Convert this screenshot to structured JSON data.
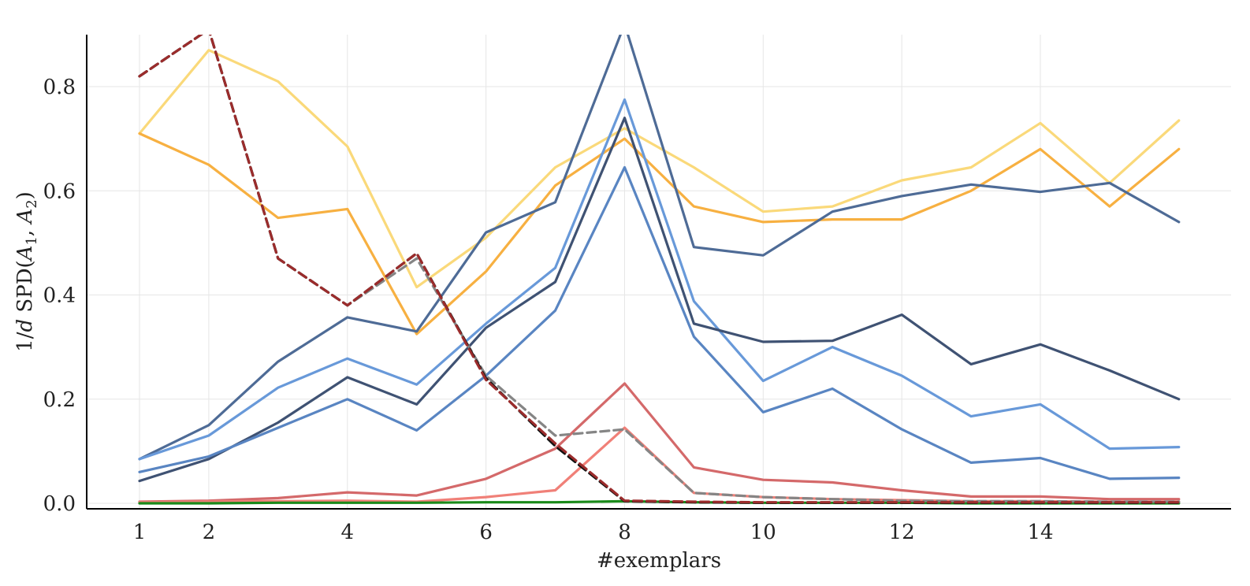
{
  "chart_data": {
    "type": "line",
    "xlabel": "#exemplars",
    "ylabel": "1/d SPD(A1, A2)",
    "ylabel_parts": {
      "prefix": "1/",
      "d": "d",
      "spd": " SPD(",
      "a": "A",
      "sub1": "1",
      "comma": ", ",
      "sub2": "2",
      "close": ")"
    },
    "xlim": [
      0.5,
      16.8
    ],
    "ylim": [
      -0.005,
      0.9
    ],
    "xticks": [
      1,
      2,
      4,
      6,
      8,
      10,
      12,
      14
    ],
    "yticks": [
      0.0,
      0.2,
      0.4,
      0.6,
      0.8
    ],
    "ytick_labels": [
      "0.0",
      "0.2",
      "0.4",
      "0.6",
      "0.8"
    ],
    "grid": true,
    "x": [
      1,
      2,
      3,
      4,
      5,
      6,
      7,
      8,
      9,
      10,
      11,
      12,
      13,
      14,
      15,
      16
    ],
    "series": [
      {
        "color": "#fad97a",
        "style": "solid",
        "values": [
          0.71,
          0.87,
          0.81,
          0.685,
          0.415,
          0.51,
          0.645,
          0.72,
          0.645,
          0.56,
          0.57,
          0.62,
          0.645,
          0.73,
          0.615,
          0.735
        ]
      },
      {
        "color": "#f7b041",
        "style": "solid",
        "values": [
          0.71,
          0.65,
          0.548,
          0.565,
          0.325,
          0.445,
          0.61,
          0.7,
          0.57,
          0.54,
          0.545,
          0.545,
          0.6,
          0.68,
          0.57,
          0.68
        ]
      },
      {
        "color": "#4e6b96",
        "style": "solid",
        "values": [
          0.085,
          0.15,
          0.272,
          0.357,
          0.33,
          0.52,
          0.578,
          0.92,
          0.492,
          0.476,
          0.56,
          0.59,
          0.612,
          0.598,
          0.615,
          0.54
        ]
      },
      {
        "color": "#6899d9",
        "style": "solid",
        "values": [
          0.085,
          0.13,
          0.222,
          0.278,
          0.228,
          0.345,
          0.452,
          0.775,
          0.388,
          0.235,
          0.3,
          0.245,
          0.167,
          0.19,
          0.105,
          0.108
        ]
      },
      {
        "color": "#3f5273",
        "style": "solid",
        "values": [
          0.043,
          0.085,
          0.155,
          0.242,
          0.19,
          0.337,
          0.425,
          0.74,
          0.345,
          0.31,
          0.312,
          0.362,
          0.267,
          0.305,
          0.255,
          0.2
        ]
      },
      {
        "color": "#5985c2",
        "style": "solid",
        "values": [
          0.06,
          0.09,
          0.145,
          0.2,
          0.14,
          0.245,
          0.37,
          0.645,
          0.32,
          0.175,
          0.22,
          0.142,
          0.078,
          0.087,
          0.047,
          0.049
        ]
      },
      {
        "color": "#d4696a",
        "style": "solid",
        "values": [
          0.003,
          0.005,
          0.01,
          0.021,
          0.015,
          0.047,
          0.105,
          0.23,
          0.069,
          0.045,
          0.04,
          0.025,
          0.013,
          0.013,
          0.008,
          0.008
        ]
      },
      {
        "color": "#f08078",
        "style": "solid",
        "values": [
          0.002,
          0.003,
          0.004,
          0.005,
          0.003,
          0.012,
          0.025,
          0.145,
          0.02,
          0.012,
          0.008,
          0.006,
          0.004,
          0.004,
          0.003,
          0.003
        ]
      },
      {
        "color": "#1a8a1a",
        "style": "solid",
        "values": [
          0.0,
          0.0,
          0.001,
          0.001,
          0.001,
          0.002,
          0.002,
          0.004,
          0.002,
          0.001,
          0.001,
          0.001,
          0.0,
          0.0,
          0.0,
          0.0
        ]
      },
      {
        "color": "#858585",
        "style": "dashed",
        "values": [
          0.82,
          0.91,
          0.47,
          0.38,
          0.47,
          0.245,
          0.13,
          0.142,
          0.02,
          0.012,
          0.008,
          0.005,
          0.004,
          0.004,
          0.003,
          0.003
        ]
      },
      {
        "color": "#111111",
        "style": "dashed",
        "values": [
          0.82,
          0.91,
          0.47,
          0.38,
          0.48,
          0.24,
          0.11,
          0.004,
          0.002,
          0.001,
          0.001,
          0.001,
          0.001,
          0.001,
          0.001,
          0.001
        ]
      },
      {
        "color": "#9b2c2c",
        "style": "dashed",
        "values": [
          0.82,
          0.91,
          0.47,
          0.38,
          0.48,
          0.237,
          0.115,
          0.005,
          0.003,
          0.002,
          0.002,
          0.002,
          0.002,
          0.002,
          0.002,
          0.002
        ]
      }
    ]
  }
}
